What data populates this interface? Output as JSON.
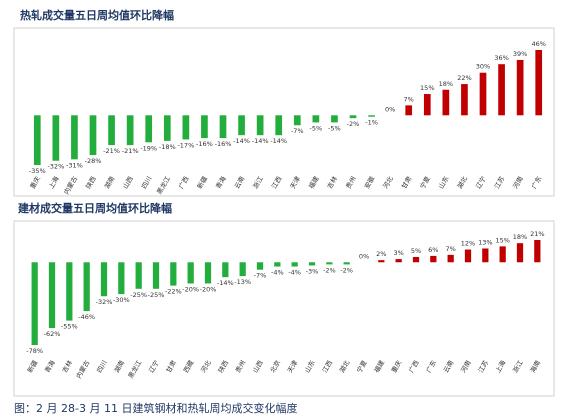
{
  "chart_data": [
    {
      "type": "bar",
      "title": "热轧成交量五日周均值环比降幅",
      "categories": [
        "重庆",
        "上海",
        "内蒙古",
        "陕西",
        "湖南",
        "山西",
        "四川",
        "黑龙江",
        "广西",
        "新疆",
        "青海",
        "云南",
        "浙江",
        "江西",
        "天津",
        "福建",
        "吉林",
        "贵州",
        "安徽",
        "河北",
        "甘肃",
        "宁夏",
        "山东",
        "湖北",
        "辽宁",
        "江苏",
        "河南",
        "广东"
      ],
      "values": [
        -35,
        -32,
        -31,
        -28,
        -21,
        -21,
        -19,
        -18,
        -17,
        -16,
        -16,
        -14,
        -14,
        -14,
        -7,
        -5,
        -5,
        -2,
        -1,
        0,
        7,
        15,
        18,
        22,
        30,
        36,
        39,
        46
      ],
      "value_labels": [
        "-35%",
        "-32%",
        "-31%",
        "-28%",
        "-21%",
        "-21%",
        "-19%",
        "-18%",
        "-17%",
        "-16%",
        "-16%",
        "-14%",
        "-14%",
        "-14%",
        "-7%",
        "-5%",
        "-5%",
        "-2%",
        "-1%",
        "0%",
        "7%",
        "15%",
        "18%",
        "22%",
        "30%",
        "36%",
        "39%",
        "46%"
      ],
      "colors": {
        "negative": "#22ad3c",
        "positive": "#c00000"
      }
    },
    {
      "type": "bar",
      "title": "建材成交量五日周均值环比降幅",
      "categories": [
        "新疆",
        "青海",
        "吉林",
        "内蒙古",
        "四川",
        "湖南",
        "黑龙江",
        "辽宁",
        "甘肃",
        "西藏",
        "河北",
        "陕西",
        "贵州",
        "山西",
        "北京",
        "天津",
        "山东",
        "江西",
        "湖北",
        "宁夏",
        "福建",
        "重庆",
        "广西",
        "广东",
        "云南",
        "河南",
        "江苏",
        "上海",
        "浙江",
        "海南"
      ],
      "values": [
        -78,
        -62,
        -55,
        -46,
        -32,
        -30,
        -25,
        -25,
        -22,
        -20,
        -20,
        -14,
        -13,
        -7,
        -4,
        -4,
        -3,
        -2,
        -2,
        0,
        2,
        3,
        5,
        6,
        7,
        12,
        13,
        15,
        18,
        21
      ],
      "value_labels": [
        "-78%",
        "-62%",
        "-55%",
        "-46%",
        "-32%",
        "-30%",
        "-25%",
        "-25%",
        "-22%",
        "-20%",
        "-20%",
        "-14%",
        "-13%",
        "-7%",
        "-4%",
        "-4%",
        "-3%",
        "-2%",
        "-2%",
        "0%",
        "2%",
        "3%",
        "5%",
        "6%",
        "7%",
        "12%",
        "13%",
        "15%",
        "18%",
        "21%"
      ],
      "colors": {
        "negative": "#22ad3c",
        "positive": "#c00000"
      }
    }
  ],
  "caption": "图：2 月 28-3 月 11 日建筑钢材和热轧周均成交变化幅度"
}
